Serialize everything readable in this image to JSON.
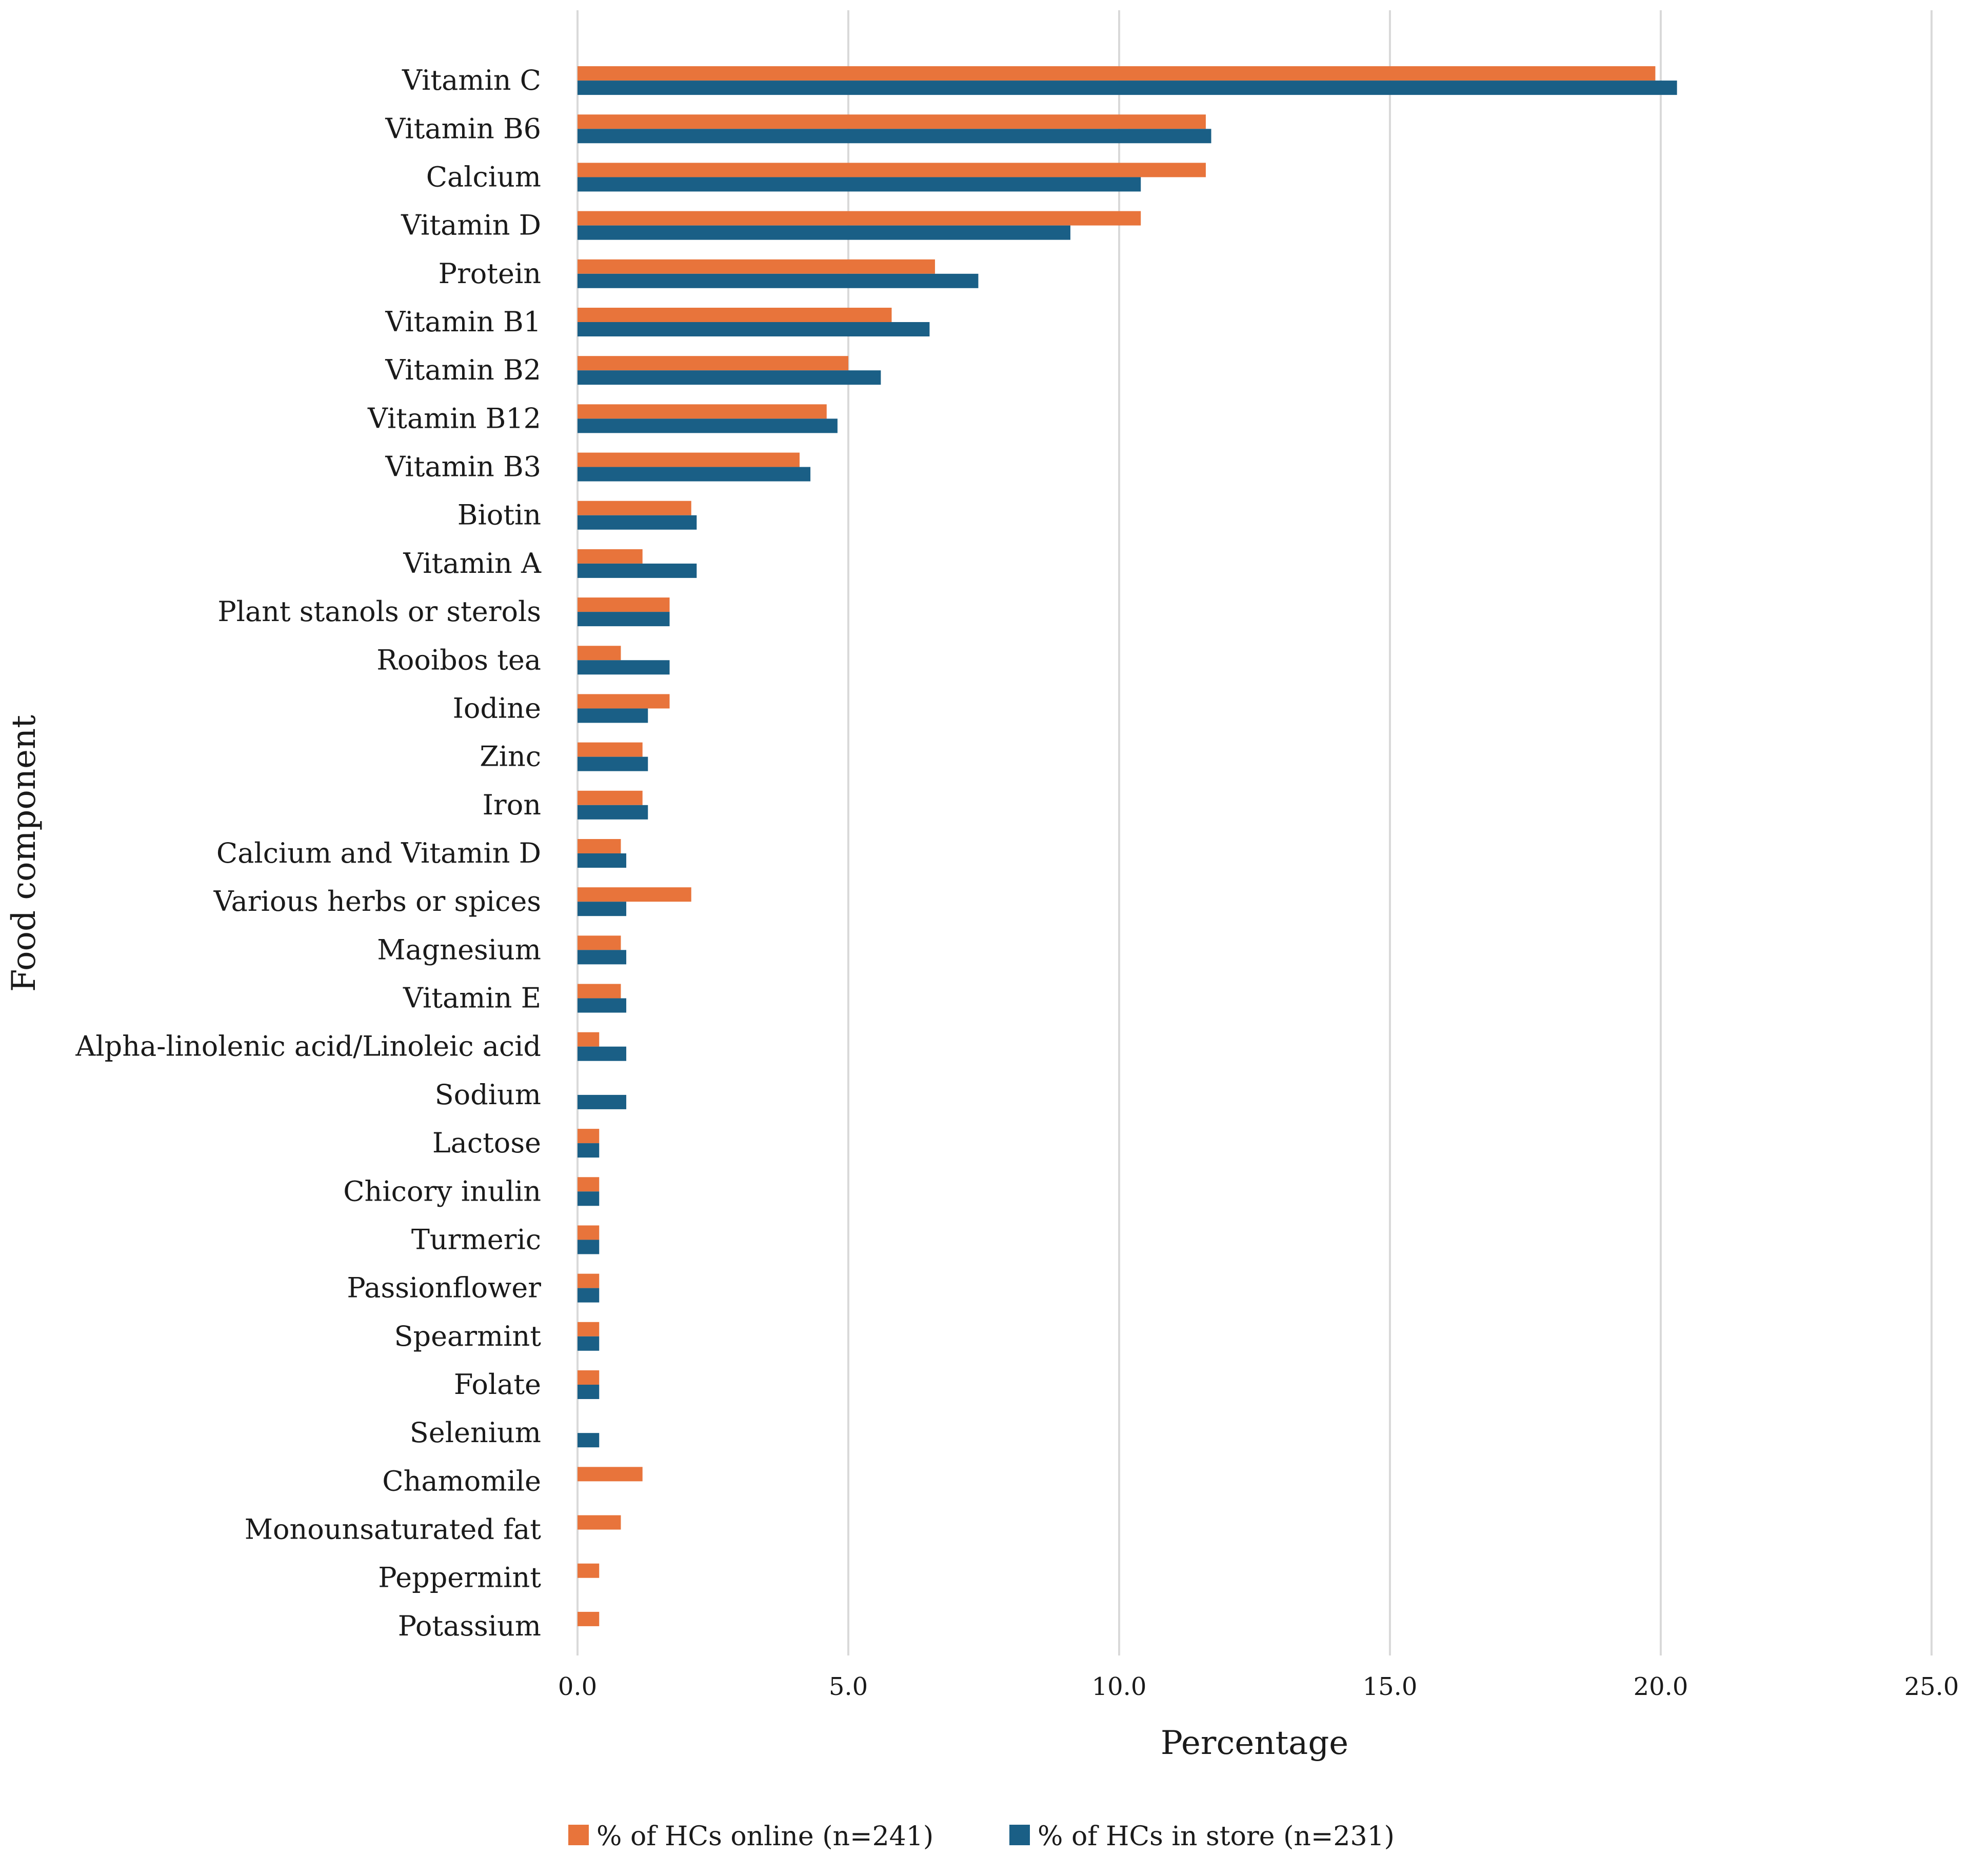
{
  "chart_data": {
    "type": "bar",
    "orientation": "horizontal",
    "xlabel": "Percentage",
    "ylabel": "Food component",
    "xlim": [
      0,
      25
    ],
    "xticks": [
      "0.0",
      "5.0",
      "10.0",
      "15.0",
      "20.0",
      "25.0"
    ],
    "grid": "vertical",
    "legend_position": "bottom",
    "categories": [
      "Vitamin C",
      "Vitamin B6",
      "Calcium",
      "Vitamin D",
      "Protein",
      "Vitamin B1",
      "Vitamin B2",
      "Vitamin B12",
      "Vitamin B3",
      "Biotin",
      "Vitamin A",
      "Plant stanols or sterols",
      "Rooibos tea",
      "Iodine",
      "Zinc",
      "Iron",
      "Calcium and Vitamin D",
      "Various herbs or spices",
      "Magnesium",
      "Vitamin E",
      "Alpha-linolenic acid/Linoleic acid",
      "Sodium",
      "Lactose",
      "Chicory inulin",
      "Turmeric",
      "Passionflower",
      "Spearmint",
      "Folate",
      "Selenium",
      "Chamomile",
      "Monounsaturated fat",
      "Peppermint",
      "Potassium"
    ],
    "series": [
      {
        "name": "% of HCs online (n=241)",
        "color": "#e8743b",
        "values": [
          19.9,
          11.6,
          11.6,
          10.4,
          6.6,
          5.8,
          5.0,
          4.6,
          4.1,
          2.1,
          1.2,
          1.7,
          0.8,
          1.7,
          1.2,
          1.2,
          0.8,
          2.1,
          0.8,
          0.8,
          0.4,
          0.0,
          0.4,
          0.4,
          0.4,
          0.4,
          0.4,
          0.4,
          0.0,
          1.2,
          0.8,
          0.4,
          0.4
        ]
      },
      {
        "name": "% of HCs in store (n=231)",
        "color": "#1a5f86",
        "values": [
          20.3,
          11.7,
          10.4,
          9.1,
          7.4,
          6.5,
          5.6,
          4.8,
          4.3,
          2.2,
          2.2,
          1.7,
          1.7,
          1.3,
          1.3,
          1.3,
          0.9,
          0.9,
          0.9,
          0.9,
          0.9,
          0.9,
          0.4,
          0.4,
          0.4,
          0.4,
          0.4,
          0.4,
          0.4,
          0.0,
          0.0,
          0.0,
          0.0
        ]
      }
    ]
  }
}
